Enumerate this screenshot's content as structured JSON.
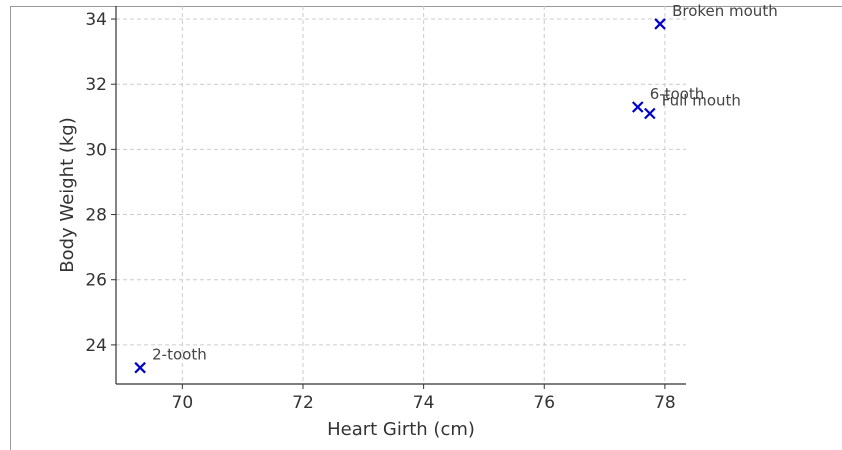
{
  "chart_data": {
    "type": "scatter",
    "title": "",
    "xlabel": "Heart Girth (cm)",
    "ylabel": "Body Weight (kg)",
    "xlim": [
      68.9,
      78.35
    ],
    "ylim": [
      22.8,
      34.4
    ],
    "xticks": [
      "70",
      "72",
      "74",
      "76",
      "78"
    ],
    "yticks": [
      "24",
      "26",
      "28",
      "30",
      "32",
      "34"
    ],
    "grid": true,
    "marker": "x",
    "marker_color": "#0000cc",
    "points": [
      {
        "x": 69.3,
        "y": 23.3,
        "label": "2-tooth"
      },
      {
        "x": 77.55,
        "y": 31.3,
        "label": "6-tooth"
      },
      {
        "x": 77.75,
        "y": 31.1,
        "label": "Full mouth"
      },
      {
        "x": 77.92,
        "y": 33.85,
        "label": "Broken mouth"
      }
    ]
  }
}
